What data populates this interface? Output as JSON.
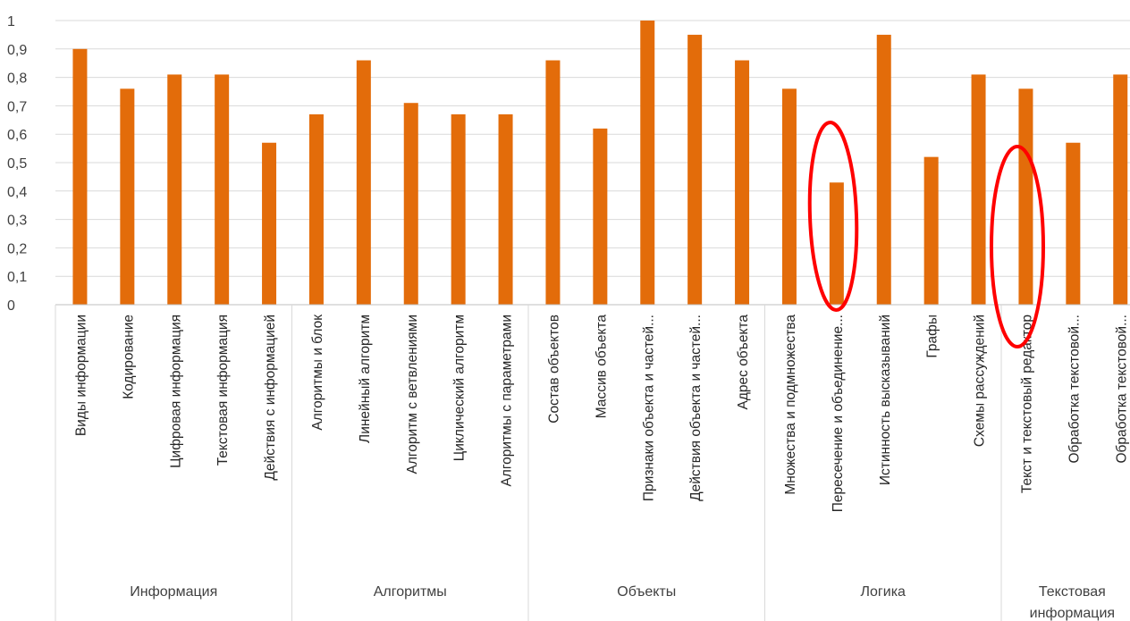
{
  "chart_data": {
    "type": "bar",
    "ylim": [
      0,
      1
    ],
    "y_ticks": [
      "0",
      "0,1",
      "0,2",
      "0,3",
      "0,4",
      "0,5",
      "0,6",
      "0,7",
      "0,8",
      "0,9",
      "1"
    ],
    "grid": true,
    "bar_color": "#e36c0a",
    "highlight_color": "#ff0000",
    "categories": [
      "Виды информации",
      "Кодирование",
      "Цифровая информация",
      "Текстовая информация",
      "Действия с информацией",
      "Алгоритмы и блок",
      "Линейный алгоритм",
      "Алгоритм с ветвлениями",
      "Циклический алгоритм",
      "Алгоритмы с параметрами",
      "Состав объектов",
      "Массив объекта",
      "Признаки объекта и частей...",
      "Действия объекта и частей...",
      "Адрес объекта",
      "Множества и подмножества",
      "Пересечение и объединение...",
      "Истинность высказываний",
      "Графы",
      "Схемы рассуждений",
      "Текст и текстовый редактор",
      "Обработка текстовой...",
      "Обработка текстовой..."
    ],
    "values": [
      0.9,
      0.76,
      0.81,
      0.81,
      0.57,
      0.67,
      0.86,
      0.71,
      0.67,
      0.67,
      0.86,
      0.62,
      1.0,
      0.95,
      0.86,
      0.76,
      0.43,
      0.95,
      0.52,
      0.81,
      0.76,
      0.57,
      0.81
    ],
    "groups": [
      {
        "label": "Информация",
        "count": 5
      },
      {
        "label": "Алгоритмы",
        "count": 5
      },
      {
        "label": "Объекты",
        "count": 5
      },
      {
        "label": "Логика",
        "count": 5
      },
      {
        "label": "Текстовая информация",
        "count": 3
      }
    ],
    "highlighted_categories": [
      16,
      20
    ]
  }
}
